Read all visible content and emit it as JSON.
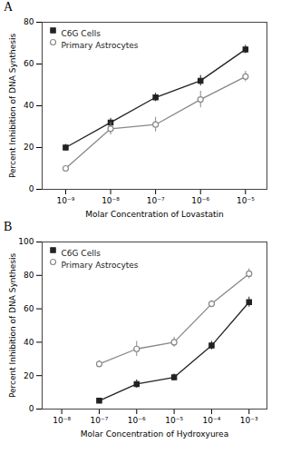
{
  "chart_data": [
    {
      "type": "line",
      "title": "A",
      "xlabel": "Molar Concentration of Lovastatin",
      "ylabel": "Percent Inhibition of DNA Synthesis",
      "x": [
        1e-09,
        1e-08,
        1e-07,
        1e-06,
        1e-05
      ],
      "series": [
        {
          "name": "C6G Cells",
          "color": "#222222",
          "marker": "square",
          "line_style": "solid",
          "values": [
            20,
            32,
            44,
            52,
            67
          ],
          "yerr": [
            1.5,
            2.0,
            2.0,
            2.5,
            2.0
          ]
        },
        {
          "name": "Primary Astrocytes",
          "color": "#888888",
          "marker": "open circle",
          "line_style": "solid",
          "values": [
            10,
            29,
            31,
            43,
            54
          ],
          "yerr": [
            1.0,
            3.0,
            3.5,
            4.0,
            2.5
          ]
        }
      ],
      "log": "x",
      "xlim": [
        3e-10,
        3e-05
      ],
      "xticks": [
        {
          "value": 1e-09,
          "label": "10⁻⁹"
        },
        {
          "value": 1e-08,
          "label": "10⁻⁸"
        },
        {
          "value": 1e-07,
          "label": "10⁻⁷"
        },
        {
          "value": 1e-06,
          "label": "10⁻⁶"
        },
        {
          "value": 1e-05,
          "label": "10⁻⁵"
        }
      ],
      "ylim": [
        0,
        80
      ],
      "yticks": [
        0,
        20,
        40,
        60,
        80
      ],
      "grid": false,
      "legend": "upper left"
    },
    {
      "type": "line",
      "title": "B",
      "xlabel": "Molar Concentration of Hydroxyurea",
      "ylabel": "Percent Inhibition of DNA Synthesis",
      "x": [
        1e-07,
        1e-06,
        1e-05,
        0.0001,
        0.001
      ],
      "series": [
        {
          "name": "C6G Cells",
          "color": "#222222",
          "marker": "square",
          "line_style": "solid",
          "values": [
            5,
            15,
            19,
            38,
            64
          ],
          "yerr": [
            1.5,
            2.5,
            2.0,
            2.5,
            3.0
          ]
        },
        {
          "name": "Primary Astrocytes",
          "color": "#888888",
          "marker": "open circle",
          "line_style": "solid",
          "values": [
            27,
            36,
            40,
            63,
            81
          ],
          "yerr": [
            2.0,
            4.5,
            3.0,
            2.0,
            3.0
          ]
        }
      ],
      "log": "x",
      "xlim": [
        3e-09,
        0.003
      ],
      "xticks": [
        {
          "value": 1e-08,
          "label": "10⁻⁸"
        },
        {
          "value": 1e-07,
          "label": "10⁻⁷"
        },
        {
          "value": 1e-06,
          "label": "10⁻⁶"
        },
        {
          "value": 1e-05,
          "label": "10⁻⁵"
        },
        {
          "value": 0.0001,
          "label": "10⁻⁴"
        },
        {
          "value": 0.001,
          "label": "10⁻³"
        }
      ],
      "ylim": [
        0,
        100
      ],
      "yticks": [
        0,
        20,
        40,
        60,
        80,
        100
      ],
      "grid": false,
      "legend": "upper left"
    }
  ]
}
